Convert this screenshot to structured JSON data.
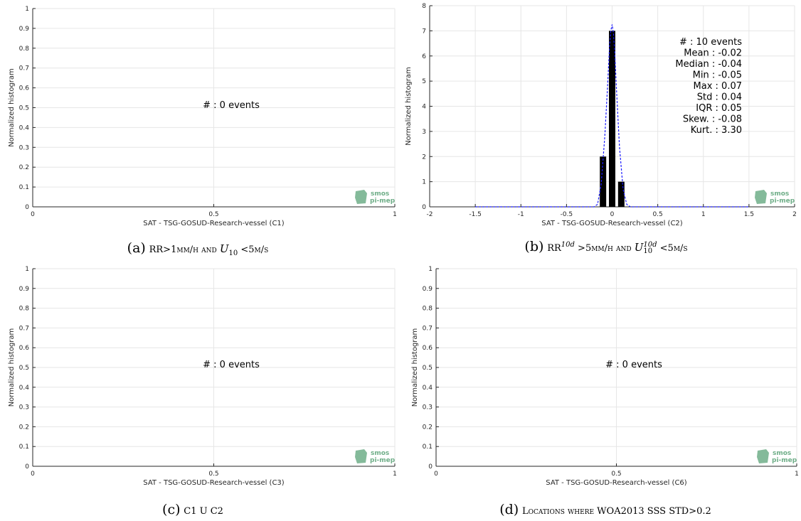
{
  "colors": {
    "bar": "#000000",
    "fit": "#1a1aff",
    "grid": "#e6e6e6",
    "logo": "#6fae88"
  },
  "logo": {
    "line1": "smos",
    "line2": "pi-mep"
  },
  "captions": [
    {
      "label": "(a)",
      "text": "RR>1mm/h and U10 <5m/s"
    },
    {
      "label": "(b)",
      "text": "RR10d >5mm/h and U10 10d <5m/s"
    },
    {
      "label": "(c)",
      "text": "C1 U C2"
    },
    {
      "label": "(d)",
      "text": "Locations where WOA2013 SSS STD>0.2"
    }
  ],
  "caption_parts": {
    "a": {
      "p1": "RR>1mm/h and ",
      "u": "U",
      "sub": "10",
      "p2": " <5m/s"
    },
    "b": {
      "p1": "RR",
      "sup1": "10d",
      "p2": " >5mm/h and ",
      "u": "U",
      "sub": "10",
      "sup2": "10d",
      "p3": " <5m/s"
    },
    "c": {
      "p1": "C1 U C2"
    },
    "d": {
      "p1": "Locations where WOA2013 SSS STD>0.2"
    }
  },
  "chart_data": [
    {
      "id": "a",
      "type": "bar",
      "xlabel": "SAT - TSG-GOSUD-Research-vessel (C1)",
      "ylabel": "Normalized histogram",
      "xlim": [
        0,
        1
      ],
      "ylim": [
        0,
        1
      ],
      "xticks": [
        "0",
        "0.5",
        "1"
      ],
      "xtick_values": [
        0,
        0.5,
        1
      ],
      "yticks": [
        "0",
        "0.1",
        "0.2",
        "0.3",
        "0.4",
        "0.5",
        "0.6",
        "0.7",
        "0.8",
        "0.9",
        "1"
      ],
      "ytick_values": [
        0,
        0.1,
        0.2,
        0.3,
        0.4,
        0.5,
        0.6,
        0.7,
        0.8,
        0.9,
        1
      ],
      "grid": true,
      "annotation": [
        "#  : 0 events"
      ],
      "bars": [],
      "fit": []
    },
    {
      "id": "b",
      "type": "bar",
      "xlabel": "SAT - TSG-GOSUD-Research-vessel (C2)",
      "ylabel": "Normalized histogram",
      "xlim": [
        -2,
        2
      ],
      "ylim": [
        0,
        8
      ],
      "xticks": [
        "-2",
        "-1.5",
        "-1",
        "-0.5",
        "0",
        "0.5",
        "1",
        "1.5",
        "2"
      ],
      "xtick_values": [
        -2,
        -1.5,
        -1,
        -0.5,
        0,
        0.5,
        1,
        1.5,
        2
      ],
      "yticks": [
        "0",
        "1",
        "2",
        "3",
        "4",
        "5",
        "6",
        "7",
        "8"
      ],
      "ytick_values": [
        0,
        1,
        2,
        3,
        4,
        5,
        6,
        7,
        8
      ],
      "grid": true,
      "annotation": [
        "#  : 10 events",
        "Mean : -0.02",
        "Median : -0.04",
        "Min : -0.05",
        "Max : 0.07",
        "Std : 0.04",
        "IQR : 0.05",
        "Skew. : -0.08",
        "Kurt. : 3.30"
      ],
      "bars": [
        {
          "x": -0.1,
          "value": 2
        },
        {
          "x": 0.0,
          "value": 7
        },
        {
          "x": 0.1,
          "value": 1
        }
      ],
      "bar_width": 0.07,
      "fit": [
        [
          -1.5,
          0
        ],
        [
          -0.2,
          0
        ],
        [
          -0.16,
          0.1
        ],
        [
          -0.12,
          0.9
        ],
        [
          -0.08,
          2.8
        ],
        [
          -0.05,
          4.8
        ],
        [
          -0.03,
          6.3
        ],
        [
          -0.015,
          7.0
        ],
        [
          0.0,
          7.25
        ],
        [
          0.015,
          6.9
        ],
        [
          0.03,
          6.1
        ],
        [
          0.05,
          4.5
        ],
        [
          0.08,
          2.4
        ],
        [
          0.12,
          0.7
        ],
        [
          0.16,
          0.1
        ],
        [
          0.2,
          0
        ],
        [
          1.5,
          0
        ]
      ]
    },
    {
      "id": "c",
      "type": "bar",
      "xlabel": "SAT - TSG-GOSUD-Research-vessel (C3)",
      "ylabel": "Normalized histogram",
      "xlim": [
        0,
        1
      ],
      "ylim": [
        0,
        1
      ],
      "xticks": [
        "0",
        "0.5",
        "1"
      ],
      "xtick_values": [
        0,
        0.5,
        1
      ],
      "yticks": [
        "0",
        "0.1",
        "0.2",
        "0.3",
        "0.4",
        "0.5",
        "0.6",
        "0.7",
        "0.8",
        "0.9",
        "1"
      ],
      "ytick_values": [
        0,
        0.1,
        0.2,
        0.3,
        0.4,
        0.5,
        0.6,
        0.7,
        0.8,
        0.9,
        1
      ],
      "grid": true,
      "annotation": [
        "#  : 0 events"
      ],
      "bars": [],
      "fit": []
    },
    {
      "id": "d",
      "type": "bar",
      "xlabel": "SAT - TSG-GOSUD-Research-vessel (C6)",
      "ylabel": "Normalized histogram",
      "xlim": [
        0,
        1
      ],
      "ylim": [
        0,
        1
      ],
      "xticks": [
        "0",
        "0.5",
        "1"
      ],
      "xtick_values": [
        0,
        0.5,
        1
      ],
      "yticks": [
        "0",
        "0.1",
        "0.2",
        "0.3",
        "0.4",
        "0.5",
        "0.6",
        "0.7",
        "0.8",
        "0.9",
        "1"
      ],
      "ytick_values": [
        0,
        0.1,
        0.2,
        0.3,
        0.4,
        0.5,
        0.6,
        0.7,
        0.8,
        0.9,
        1
      ],
      "grid": true,
      "annotation": [
        "#  : 0 events"
      ],
      "bars": [],
      "fit": []
    }
  ]
}
